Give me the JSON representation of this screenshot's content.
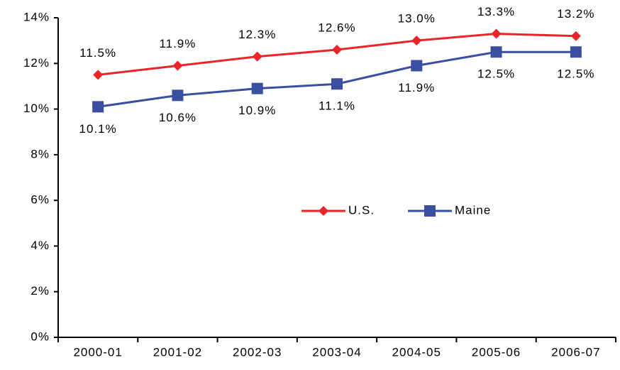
{
  "chart_data": {
    "type": "line",
    "categories": [
      "2000-01",
      "2001-02",
      "2002-03",
      "2003-04",
      "2004-05",
      "2005-06",
      "2006-07"
    ],
    "series": [
      {
        "name": "U.S.",
        "color": "#e8262a",
        "marker": "diamond",
        "values": [
          11.5,
          11.9,
          12.3,
          12.6,
          13.0,
          13.3,
          13.2
        ],
        "value_labels": [
          "11.5%",
          "11.9%",
          "12.3%",
          "12.6%",
          "13.0%",
          "13.3%",
          "13.2%"
        ]
      },
      {
        "name": "Maine",
        "color": "#3a4fa0",
        "marker": "square",
        "values": [
          10.1,
          10.6,
          10.9,
          11.1,
          11.9,
          12.5,
          12.5
        ],
        "value_labels": [
          "10.1%",
          "10.6%",
          "10.9%",
          "11.1%",
          "11.9%",
          "12.5%",
          "12.5%"
        ]
      }
    ],
    "ylim": [
      0,
      14
    ],
    "yticks": [
      {
        "value": 0,
        "label": "0%"
      },
      {
        "value": 2,
        "label": "2%"
      },
      {
        "value": 4,
        "label": "4%"
      },
      {
        "value": 6,
        "label": "6%"
      },
      {
        "value": 8,
        "label": "8%"
      },
      {
        "value": 10,
        "label": "10%"
      },
      {
        "value": 12,
        "label": "12%"
      },
      {
        "value": 14,
        "label": "14%"
      }
    ],
    "grid": false,
    "legend": "center"
  }
}
